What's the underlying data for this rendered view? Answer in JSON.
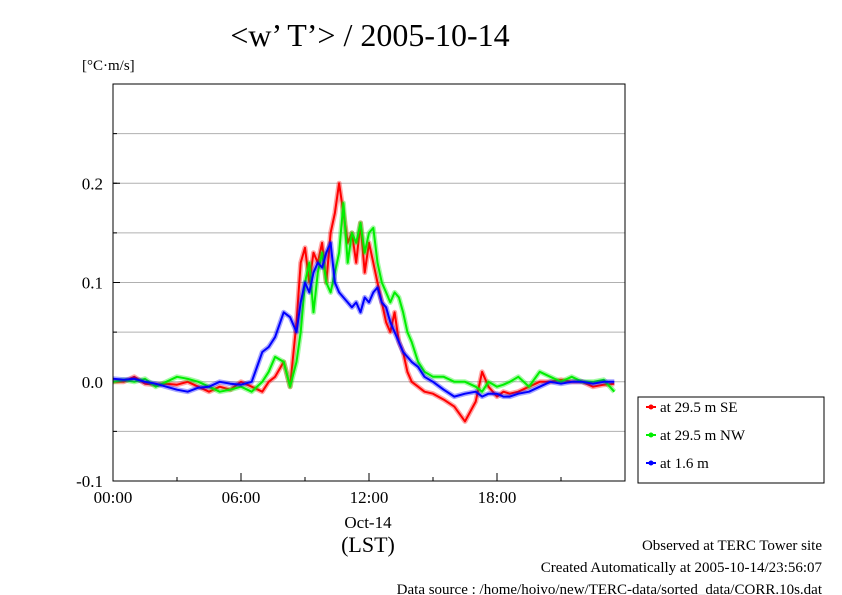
{
  "chart_data": {
    "type": "line",
    "title": "<w’ T’> / 2005-10-14",
    "ylabel": "[°C·m/s]",
    "ylim": [
      -0.1,
      0.3
    ],
    "xlim": [
      0,
      24
    ],
    "yticks": [
      {
        "v": -0.1,
        "label": "-0.1"
      },
      {
        "v": 0.0,
        "label": "0.0"
      },
      {
        "v": 0.1,
        "label": "0.1"
      },
      {
        "v": 0.2,
        "label": "0.2"
      }
    ],
    "xticks": [
      {
        "v": 0,
        "label": "00:00"
      },
      {
        "v": 6,
        "label": "06:00"
      },
      {
        "v": 12,
        "label": "12:00"
      },
      {
        "v": 18,
        "label": "18:00"
      }
    ],
    "date_label": "Oct-14",
    "xlabel": "(LST)",
    "grid": "horizontal",
    "legend_position": "right",
    "series": [
      {
        "name": "at 29.5 m SE",
        "color": "#ff0000",
        "x": [
          0,
          0.5,
          1,
          1.5,
          2,
          2.5,
          3,
          3.5,
          4,
          4.5,
          5,
          5.5,
          6,
          6.5,
          7,
          7.3,
          7.6,
          8,
          8.3,
          8.6,
          8.8,
          9.0,
          9.2,
          9.4,
          9.6,
          9.8,
          10.0,
          10.2,
          10.4,
          10.6,
          10.8,
          11.0,
          11.2,
          11.4,
          11.6,
          11.8,
          12.0,
          12.2,
          12.4,
          12.6,
          12.8,
          13.0,
          13.2,
          13.4,
          13.6,
          13.8,
          14.0,
          14.3,
          14.6,
          15.0,
          15.5,
          16,
          16.5,
          17,
          17.3,
          17.6,
          18,
          18.3,
          18.6,
          19,
          19.5,
          20,
          20.5,
          21,
          21.5,
          22,
          22.5,
          23,
          23.5
        ],
        "y": [
          0,
          0,
          0.005,
          -0.002,
          -0.003,
          -0.002,
          -0.003,
          0,
          -0.005,
          -0.01,
          -0.005,
          -0.008,
          0,
          -0.005,
          -0.01,
          0,
          0.005,
          0.02,
          -0.005,
          0.06,
          0.12,
          0.135,
          0.1,
          0.13,
          0.12,
          0.14,
          0.1,
          0.15,
          0.17,
          0.2,
          0.17,
          0.14,
          0.15,
          0.12,
          0.16,
          0.11,
          0.14,
          0.12,
          0.1,
          0.08,
          0.06,
          0.05,
          0.07,
          0.04,
          0.03,
          0.01,
          0.0,
          -0.005,
          -0.01,
          -0.012,
          -0.018,
          -0.025,
          -0.04,
          -0.02,
          0.01,
          -0.005,
          -0.015,
          -0.01,
          -0.012,
          -0.01,
          -0.005,
          0.0,
          0.0,
          0.002,
          0.0,
          0.0,
          -0.005,
          -0.003,
          -0.002
        ]
      },
      {
        "name": "at 29.5 m NW",
        "color": "#00ee00",
        "x": [
          0,
          0.5,
          1,
          1.5,
          2,
          2.5,
          3,
          3.5,
          4,
          4.5,
          5,
          5.5,
          6,
          6.5,
          7,
          7.3,
          7.6,
          8,
          8.3,
          8.6,
          8.8,
          9.0,
          9.2,
          9.4,
          9.6,
          9.8,
          10.0,
          10.2,
          10.4,
          10.6,
          10.8,
          11.0,
          11.2,
          11.4,
          11.6,
          11.8,
          12.0,
          12.2,
          12.4,
          12.6,
          12.8,
          13.0,
          13.2,
          13.4,
          13.6,
          13.8,
          14.0,
          14.3,
          14.6,
          15.0,
          15.5,
          16,
          16.5,
          17,
          17.3,
          17.6,
          18,
          18.3,
          18.6,
          19,
          19.5,
          20,
          20.5,
          21,
          21.5,
          22,
          22.5,
          23,
          23.5
        ],
        "y": [
          0,
          0.002,
          0,
          0.003,
          -0.005,
          0,
          0.005,
          0.003,
          0.0,
          -0.005,
          -0.01,
          -0.008,
          -0.005,
          -0.01,
          0.0,
          0.01,
          0.025,
          0.02,
          -0.005,
          0.02,
          0.05,
          0.1,
          0.12,
          0.07,
          0.11,
          0.13,
          0.1,
          0.09,
          0.11,
          0.13,
          0.18,
          0.12,
          0.15,
          0.14,
          0.16,
          0.13,
          0.15,
          0.155,
          0.12,
          0.1,
          0.09,
          0.08,
          0.09,
          0.085,
          0.07,
          0.05,
          0.04,
          0.02,
          0.01,
          0.005,
          0.005,
          0.0,
          0.0,
          -0.005,
          -0.01,
          0.0,
          -0.005,
          -0.003,
          0.0,
          0.005,
          -0.005,
          0.01,
          0.005,
          0.0,
          0.005,
          0.0,
          0.0,
          0.002,
          -0.01
        ]
      },
      {
        "name": "at 1.6 m",
        "color": "#0000ff",
        "x": [
          0,
          0.5,
          1,
          1.5,
          2,
          2.5,
          3,
          3.5,
          4,
          4.5,
          5,
          5.5,
          6,
          6.5,
          7,
          7.3,
          7.6,
          8,
          8.3,
          8.6,
          8.8,
          9.0,
          9.2,
          9.4,
          9.6,
          9.8,
          10.0,
          10.2,
          10.4,
          10.6,
          10.8,
          11.0,
          11.2,
          11.4,
          11.6,
          11.8,
          12.0,
          12.2,
          12.4,
          12.6,
          12.8,
          13.0,
          13.2,
          13.4,
          13.6,
          13.8,
          14.0,
          14.3,
          14.6,
          15.0,
          15.5,
          16,
          16.5,
          17,
          17.3,
          17.6,
          18,
          18.3,
          18.6,
          19,
          19.5,
          20,
          20.5,
          21,
          21.5,
          22,
          22.5,
          23,
          23.5
        ],
        "y": [
          0.003,
          0.002,
          0.003,
          0.0,
          -0.002,
          -0.005,
          -0.008,
          -0.01,
          -0.006,
          -0.005,
          0.0,
          -0.002,
          -0.003,
          0.0,
          0.03,
          0.035,
          0.045,
          0.07,
          0.065,
          0.05,
          0.08,
          0.1,
          0.09,
          0.11,
          0.12,
          0.115,
          0.13,
          0.14,
          0.1,
          0.09,
          0.085,
          0.08,
          0.075,
          0.08,
          0.07,
          0.085,
          0.08,
          0.09,
          0.095,
          0.08,
          0.075,
          0.06,
          0.05,
          0.04,
          0.03,
          0.025,
          0.02,
          0.015,
          0.005,
          0.0,
          -0.008,
          -0.015,
          -0.012,
          -0.01,
          -0.015,
          -0.012,
          -0.012,
          -0.015,
          -0.015,
          -0.012,
          -0.01,
          -0.005,
          0.0,
          -0.002,
          0.0,
          0.0,
          -0.002,
          0.0,
          0.0
        ]
      }
    ]
  },
  "footer": {
    "line1": "Observed at TERC Tower site",
    "line2": "Created Automatically at 2005-10-14/23:56:07",
    "line3": "Data source : /home/hoivo/new/TERC-data/sorted_data/CORR.10s.dat"
  }
}
